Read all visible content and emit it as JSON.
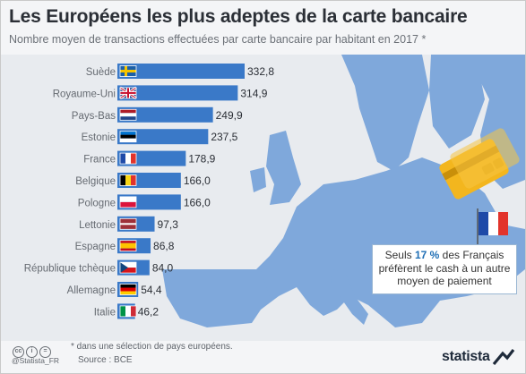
{
  "header": {
    "title": "Les Européens les plus adeptes de la carte bancaire",
    "subtitle": "Nombre moyen de transactions effectuées par carte bancaire par habitant en 2017 *"
  },
  "colors": {
    "bar": "#3a79c8",
    "map_land": "#7fa8db",
    "map_bg": "#e8ebef",
    "card": "#f3b61e",
    "accent": "#1f6fb5"
  },
  "chart_data": {
    "type": "bar",
    "orientation": "horizontal",
    "categories": [
      "Suède",
      "Royaume-Uni",
      "Pays-Bas",
      "Estonie",
      "France",
      "Belgique",
      "Pologne",
      "Lettonie",
      "Espagne",
      "République tchèque",
      "Allemagne",
      "Italie"
    ],
    "values": [
      332.8,
      314.9,
      249.9,
      237.5,
      178.9,
      166.0,
      166.0,
      97.3,
      86.8,
      84.0,
      54.4,
      46.2
    ],
    "value_labels": [
      "332,8",
      "314,9",
      "249,9",
      "237,5",
      "178,9",
      "166,0",
      "166,0",
      "97,3",
      "86,8",
      "84,0",
      "54,4",
      "46,2"
    ],
    "flags": [
      "flag-sweden-icon",
      "flag-uk-icon",
      "flag-netherlands-icon",
      "flag-estonia-icon",
      "flag-france-icon",
      "flag-belgium-icon",
      "flag-poland-icon",
      "flag-latvia-icon",
      "flag-spain-icon",
      "flag-czech-icon",
      "flag-germany-icon",
      "flag-italy-icon"
    ],
    "xlim": [
      0,
      340
    ],
    "grid": false,
    "legend": "none"
  },
  "callout": {
    "prefix": "Seuls ",
    "highlight": "17 %",
    "suffix": " des Français préfèrent le cash à un autre moyen de paiement"
  },
  "footer": {
    "footnote": "* dans une sélection de pays européens.",
    "source": "Source : BCE",
    "handle": "@Statista_FR",
    "brand": "statista"
  }
}
